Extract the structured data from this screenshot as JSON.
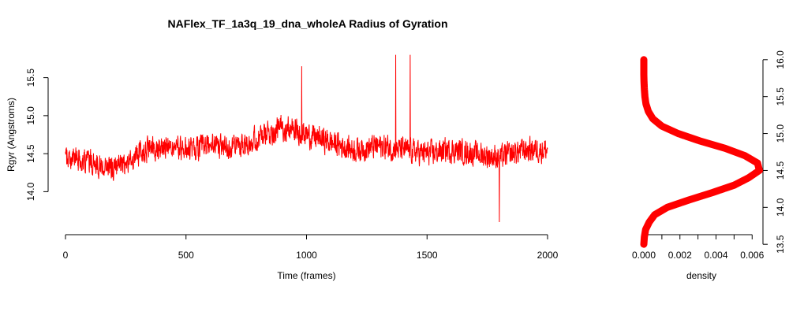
{
  "chart_data": [
    {
      "type": "line",
      "title": "NAFlex_TF_1a3q_19_dna_wholeA Radius of Gyration",
      "xlabel": "Time (frames)",
      "ylabel": "Rgyr (Angstroms)",
      "xlim": [
        0,
        2000
      ],
      "ylim": [
        13.6,
        15.9
      ],
      "xticks": [
        0,
        500,
        1000,
        1500,
        2000
      ],
      "xtick_labels": [
        "0",
        "500",
        "1000",
        "1500",
        "2000"
      ],
      "yticks": [
        14.0,
        14.5,
        15.0,
        15.5
      ],
      "ytick_labels": [
        "14.0",
        "14.5",
        "15.0",
        "15.5"
      ],
      "grid": false,
      "color": "#ff0000",
      "series": [
        {
          "frames": 2000,
          "trend_x": [
            0,
            100,
            200,
            250,
            300,
            400,
            500,
            600,
            700,
            800,
            900,
            1000,
            1100,
            1200,
            1300,
            1400,
            1500,
            1600,
            1700,
            1800,
            1900,
            2000
          ],
          "trend_y": [
            14.45,
            14.4,
            14.3,
            14.35,
            14.5,
            14.6,
            14.55,
            14.6,
            14.6,
            14.7,
            14.85,
            14.75,
            14.65,
            14.55,
            14.6,
            14.55,
            14.5,
            14.55,
            14.5,
            14.45,
            14.55,
            14.55
          ],
          "spread": 0.22,
          "max": 15.8,
          "min": 13.6
        }
      ]
    },
    {
      "type": "line",
      "xlabel": "density",
      "ylabel": "",
      "xlim": [
        0,
        0.0066
      ],
      "ylim": [
        13.47,
        16.03
      ],
      "xticks": [
        0.0,
        0.002,
        0.004,
        0.006
      ],
      "xtick_labels": [
        "0.000",
        "0.002",
        "0.004",
        "0.006"
      ],
      "xticks_minor": [
        0.001,
        0.003,
        0.005
      ],
      "yticks": [
        13.5,
        14.0,
        14.5,
        15.0,
        15.5,
        16.0
      ],
      "ytick_labels": [
        "13.5",
        "14.0",
        "14.5",
        "15.0",
        "15.5",
        "16.0"
      ],
      "y_axis_side": "right",
      "grid": false,
      "color": "#ff0000",
      "series": [
        {
          "y": [
            13.5,
            13.6,
            13.7,
            13.8,
            13.9,
            14.0,
            14.1,
            14.2,
            14.3,
            14.4,
            14.5,
            14.6,
            14.7,
            14.8,
            14.9,
            15.0,
            15.1,
            15.2,
            15.3,
            15.4,
            15.5,
            15.6,
            15.7,
            15.8,
            15.9,
            16.0
          ],
          "density": [
            0.0,
            3e-05,
            0.0001,
            0.0003,
            0.0006,
            0.0013,
            0.0025,
            0.0038,
            0.005,
            0.0058,
            0.0064,
            0.0063,
            0.0056,
            0.0045,
            0.0031,
            0.0019,
            0.001,
            0.0005,
            0.00025,
            0.00012,
            6e-05,
            3e-05,
            1e-05,
            0.0,
            0.0,
            0.0
          ]
        }
      ]
    }
  ]
}
